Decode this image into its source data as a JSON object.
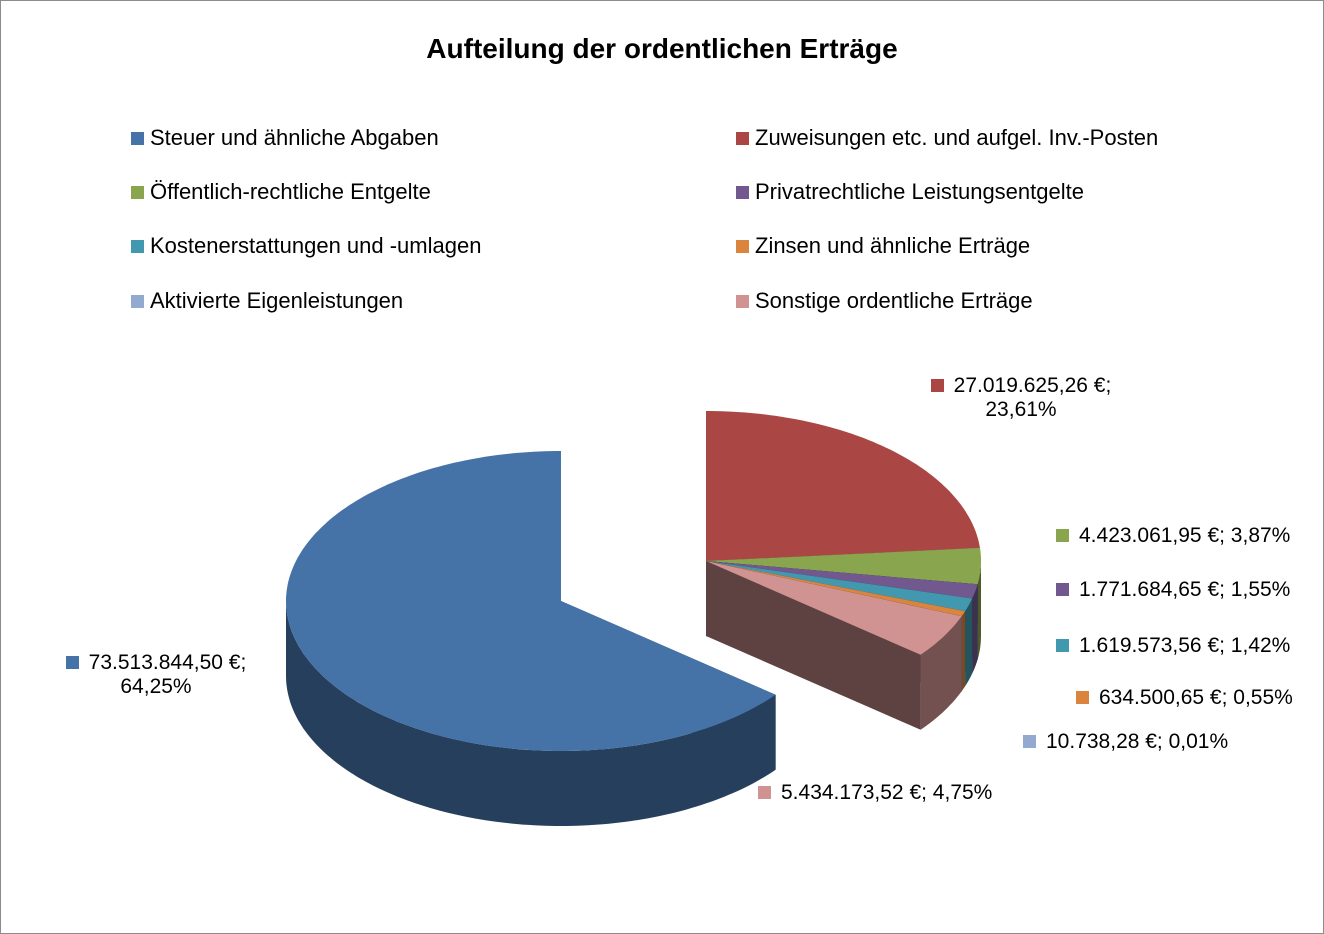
{
  "chart_data": {
    "type": "pie",
    "title": "Aufteilung der ordentlichen Erträge",
    "categories": [
      "Steuer und ähnliche Abgaben",
      "Zuweisungen etc. und aufgel. Inv.-Posten",
      "Öffentlich-rechtliche Entgelte",
      "Privatrechtliche Leistungsentgelte",
      "Kostenerstattungen und -umlagen",
      "Zinsen und ähnliche Erträge",
      "Aktivierte Eigenleistungen",
      "Sonstige ordentliche Erträge"
    ],
    "values": [
      73513844.5,
      27019625.26,
      4423061.95,
      1771684.65,
      1619573.56,
      634500.65,
      10738.28,
      5434173.52
    ],
    "value_labels": [
      "73.513.844,50 €; 64,25%",
      "27.019.625,26 €; 23,61%",
      "4.423.061,95 €; 3,87%",
      "1.771.684,65 €; 1,55%",
      "1.619.573,56 €; 1,42%",
      "634.500,65 €; 0,55%",
      "10.738,28 €; 0,01%",
      "5.434.173,52 €; 4,75%"
    ],
    "colors": [
      "#4572a7",
      "#aa4643",
      "#89a54e",
      "#71588f",
      "#4198af",
      "#db843d",
      "#93a9cf",
      "#d19392"
    ],
    "legend": "top"
  }
}
